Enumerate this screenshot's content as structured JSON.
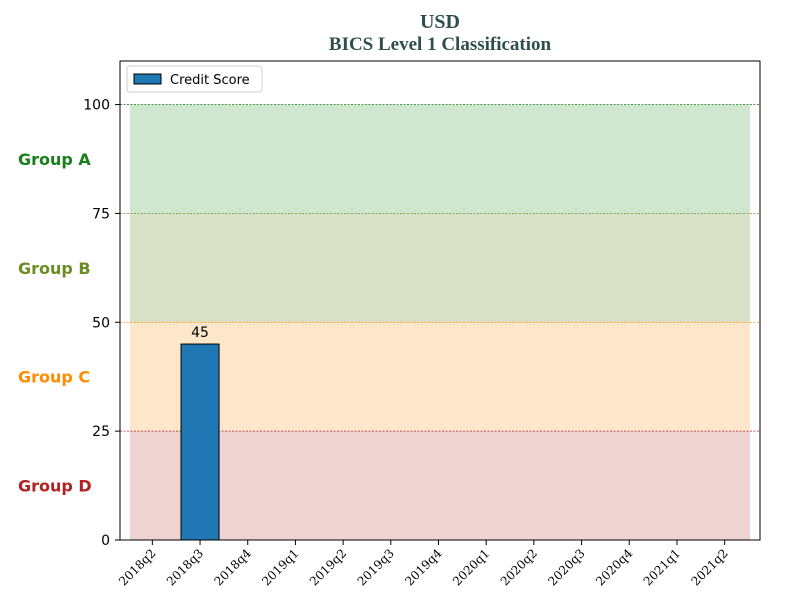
{
  "title": {
    "line1": "USD",
    "line2": "BICS Level 1 Classification"
  },
  "chart_data": {
    "type": "bar",
    "categories": [
      "2018q2",
      "2018q3",
      "2018q4",
      "2019q1",
      "2019q2",
      "2019q3",
      "2019q4",
      "2020q1",
      "2020q2",
      "2020q3",
      "2020q4",
      "2021q1",
      "2021q2"
    ],
    "series": [
      {
        "name": "Credit Score",
        "values": [
          null,
          45,
          null,
          null,
          null,
          null,
          null,
          null,
          null,
          null,
          null,
          null,
          null
        ],
        "color": "#1f77b4"
      }
    ],
    "ylim": [
      0,
      110
    ],
    "yticks": [
      0,
      25,
      50,
      75,
      100
    ],
    "legend": "top-left",
    "data_labels": [
      {
        "category": "2018q3",
        "text": "45"
      }
    ],
    "bands": [
      {
        "label": "Group A",
        "from": 75,
        "to": 100,
        "fill": "#cfe6cf",
        "line": "#2e8b2e",
        "text_color": "#1a7f1a"
      },
      {
        "label": "Group B",
        "from": 50,
        "to": 75,
        "fill": "#d9e2c6",
        "line": "#6b8e23",
        "text_color": "#6b8e23"
      },
      {
        "label": "Group C",
        "from": 25,
        "to": 50,
        "fill": "#fde6c9",
        "line": "#ff8c00",
        "text_color": "#ff8c00"
      },
      {
        "label": "Group D",
        "from": 0,
        "to": 25,
        "fill": "#efd3d3",
        "line": "#b22222",
        "text_color": "#b22222"
      }
    ]
  }
}
